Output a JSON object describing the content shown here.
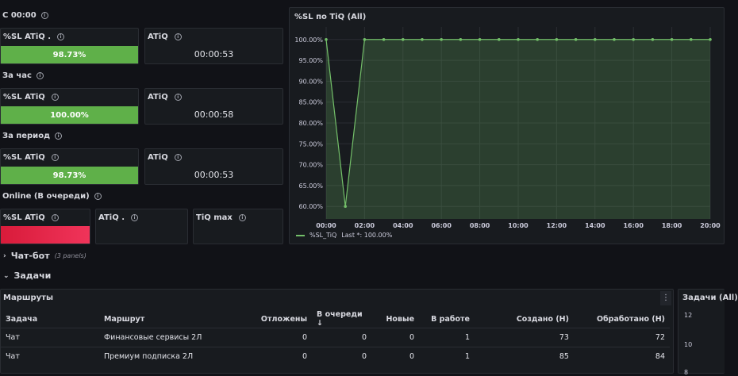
{
  "groups": [
    {
      "title": "С 00:00",
      "sl_label": "%SL ATiQ .",
      "sl_value": "98.73%",
      "sl_level": 0.9873,
      "atiq_label": "ATiQ",
      "atiq_value": "00:00:53"
    },
    {
      "title": "За час",
      "sl_label": "%SL ATiQ",
      "sl_value": "100.00%",
      "sl_level": 1.0,
      "atiq_label": "ATiQ",
      "atiq_value": "00:00:58"
    },
    {
      "title": "За период",
      "sl_label": "%SL ATiQ",
      "sl_value": "98.73%",
      "sl_level": 0.9873,
      "atiq_label": "ATiQ",
      "atiq_value": "00:00:53"
    }
  ],
  "online": {
    "title": "Online (В очереди)",
    "sl_label": "%SL ATiQ",
    "atiq_label": "ATiQ .",
    "tiq_label": "TiQ max"
  },
  "chart_panel": {
    "title": "%SL по TiQ (All)",
    "legend_label": "%SL_TiQ",
    "legend_last": "Last *: 100.00%"
  },
  "chart_data": {
    "type": "area",
    "x": [
      "00:00",
      "00:30",
      "01:00",
      "01:30",
      "02:00",
      "03:00",
      "04:00",
      "05:00",
      "06:00",
      "07:00",
      "08:00",
      "09:00",
      "10:00",
      "11:00",
      "12:00",
      "13:00",
      "14:00",
      "15:00",
      "16:00",
      "17:00",
      "18:00",
      "19:00",
      "20:00"
    ],
    "series": [
      {
        "name": "%SL_TiQ",
        "values": [
          100,
          80,
          60,
          80,
          100,
          100,
          100,
          100,
          100,
          100,
          100,
          100,
          100,
          100,
          100,
          100,
          100,
          100,
          100,
          100,
          100,
          100,
          100
        ],
        "color": "#73bf69"
      }
    ],
    "x_ticks": [
      "00:00",
      "02:00",
      "04:00",
      "06:00",
      "08:00",
      "10:00",
      "12:00",
      "14:00",
      "16:00",
      "18:00",
      "20:00"
    ],
    "y_ticks": [
      "60.00%",
      "65.00%",
      "70.00%",
      "75.00%",
      "80.00%",
      "85.00%",
      "90.00%",
      "95.00%",
      "100.00%"
    ],
    "ylim": [
      57,
      103
    ]
  },
  "rows": {
    "chatbot": {
      "title": "Чат-бот",
      "meta": "(3 panels)"
    },
    "tasks": {
      "title": "Задачи"
    }
  },
  "routes": {
    "title": "Маршруты",
    "columns": [
      "Задача",
      "Маршрут",
      "Отложены",
      "В очереди",
      "Новые",
      "В работе",
      "Создано (Н)",
      "Обработано (Н)"
    ],
    "sort_icon": "arrow-down-icon",
    "rows": [
      [
        "Чат",
        "Финансовые сервисы 2Л",
        "0",
        "0",
        "0",
        "1",
        "73",
        "72"
      ],
      [
        "Чат",
        "Премиум подписка 2Л",
        "0",
        "0",
        "0",
        "1",
        "85",
        "84"
      ]
    ]
  },
  "tasks_panel": {
    "title": "Задачи (All)",
    "y_ticks": [
      "12",
      "10",
      "8"
    ]
  },
  "colors": {
    "bg": "#111217",
    "panel": "#181b1f",
    "green": "#73bf69",
    "gauge_green": "#5fb049",
    "red": "#e02f44"
  }
}
